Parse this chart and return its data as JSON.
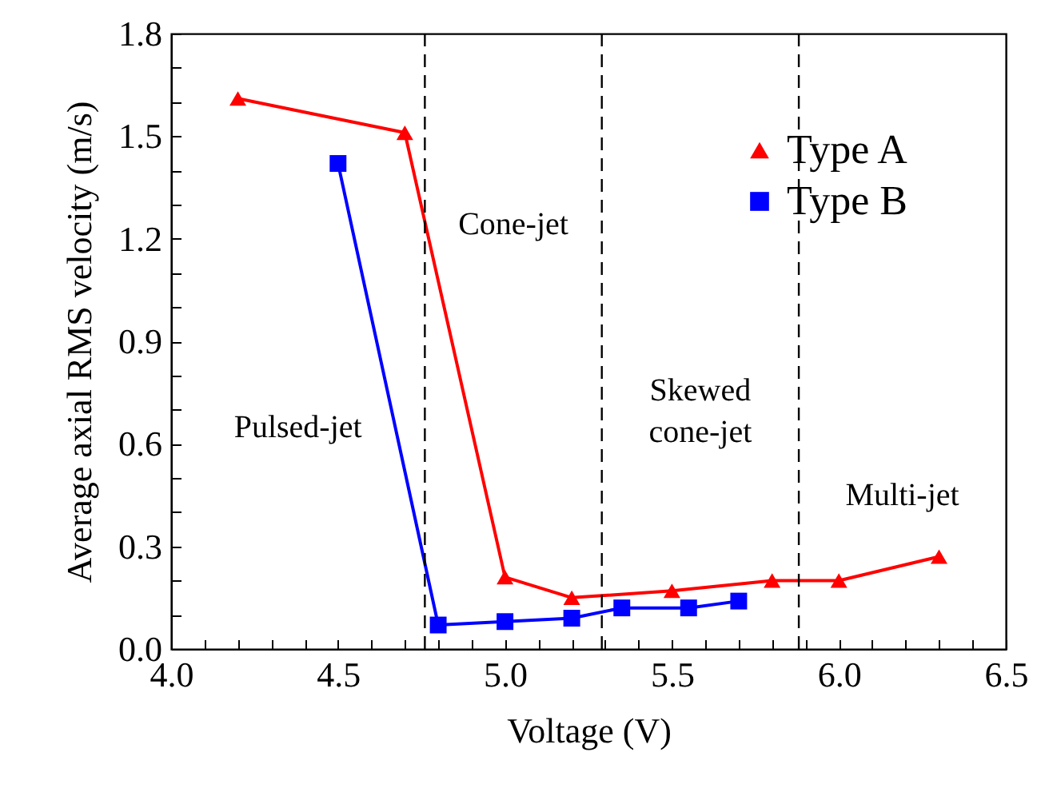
{
  "chart_data": {
    "type": "line",
    "xlabel": "Voltage (V)",
    "ylabel": "Average axial RMS velocity (m/s)",
    "xlim": [
      4.0,
      6.5
    ],
    "ylim": [
      0.0,
      1.8
    ],
    "xticks": [
      {
        "value": 4.0,
        "label": "4.0"
      },
      {
        "value": 4.1,
        "label": null
      },
      {
        "value": 4.2,
        "label": null
      },
      {
        "value": 4.3,
        "label": null
      },
      {
        "value": 4.4,
        "label": null
      },
      {
        "value": 4.5,
        "label": "4.5"
      },
      {
        "value": 4.6,
        "label": null
      },
      {
        "value": 4.7,
        "label": null
      },
      {
        "value": 4.8,
        "label": null
      },
      {
        "value": 4.9,
        "label": null
      },
      {
        "value": 5.0,
        "label": "5.0"
      },
      {
        "value": 5.1,
        "label": null
      },
      {
        "value": 5.2,
        "label": null
      },
      {
        "value": 5.3,
        "label": null
      },
      {
        "value": 5.4,
        "label": null
      },
      {
        "value": 5.5,
        "label": "5.5"
      },
      {
        "value": 5.6,
        "label": null
      },
      {
        "value": 5.7,
        "label": null
      },
      {
        "value": 5.8,
        "label": null
      },
      {
        "value": 5.9,
        "label": null
      },
      {
        "value": 6.0,
        "label": "6.0"
      },
      {
        "value": 6.1,
        "label": null
      },
      {
        "value": 6.2,
        "label": null
      },
      {
        "value": 6.3,
        "label": null
      },
      {
        "value": 6.4,
        "label": null
      },
      {
        "value": 6.5,
        "label": "6.5"
      }
    ],
    "yticks": [
      {
        "value": 0.0,
        "label": "0.0"
      },
      {
        "value": 0.1,
        "label": null
      },
      {
        "value": 0.2,
        "label": null
      },
      {
        "value": 0.3,
        "label": "0.3"
      },
      {
        "value": 0.4,
        "label": null
      },
      {
        "value": 0.5,
        "label": null
      },
      {
        "value": 0.6,
        "label": "0.6"
      },
      {
        "value": 0.7,
        "label": null
      },
      {
        "value": 0.8,
        "label": null
      },
      {
        "value": 0.9,
        "label": "0.9"
      },
      {
        "value": 1.0,
        "label": null
      },
      {
        "value": 1.1,
        "label": null
      },
      {
        "value": 1.2,
        "label": "1.2"
      },
      {
        "value": 1.3,
        "label": null
      },
      {
        "value": 1.4,
        "label": null
      },
      {
        "value": 1.5,
        "label": "1.5"
      },
      {
        "value": 1.6,
        "label": null
      },
      {
        "value": 1.7,
        "label": null
      },
      {
        "value": 1.8,
        "label": "1.8"
      }
    ],
    "series": [
      {
        "name": "Type A",
        "color": "#ff0000",
        "marker": "triangle",
        "x": [
          4.2,
          4.7,
          5.0,
          5.2,
          5.5,
          5.8,
          6.0,
          6.3
        ],
        "values": [
          1.61,
          1.51,
          0.21,
          0.15,
          0.17,
          0.2,
          0.2,
          0.27
        ]
      },
      {
        "name": "Type B",
        "color": "#0000ff",
        "marker": "square",
        "x": [
          4.5,
          4.8,
          5.0,
          5.2,
          5.35,
          5.55,
          5.7
        ],
        "values": [
          1.42,
          0.07,
          0.08,
          0.09,
          0.12,
          0.12,
          0.14
        ]
      }
    ],
    "ref_lines": [
      {
        "axis": "x",
        "value": 4.76,
        "label": null,
        "line_style": "dashed"
      },
      {
        "axis": "x",
        "value": 5.29,
        "label": null,
        "line_style": "dashed"
      },
      {
        "axis": "x",
        "value": 5.88,
        "label": null,
        "line_style": "dashed"
      }
    ],
    "annotations": [
      "Pulsed-jet",
      "Cone-jet",
      "Skewed\ncone-jet",
      "Multi-jet"
    ],
    "legend": "top right",
    "grid": false,
    "line_style": "solid"
  }
}
